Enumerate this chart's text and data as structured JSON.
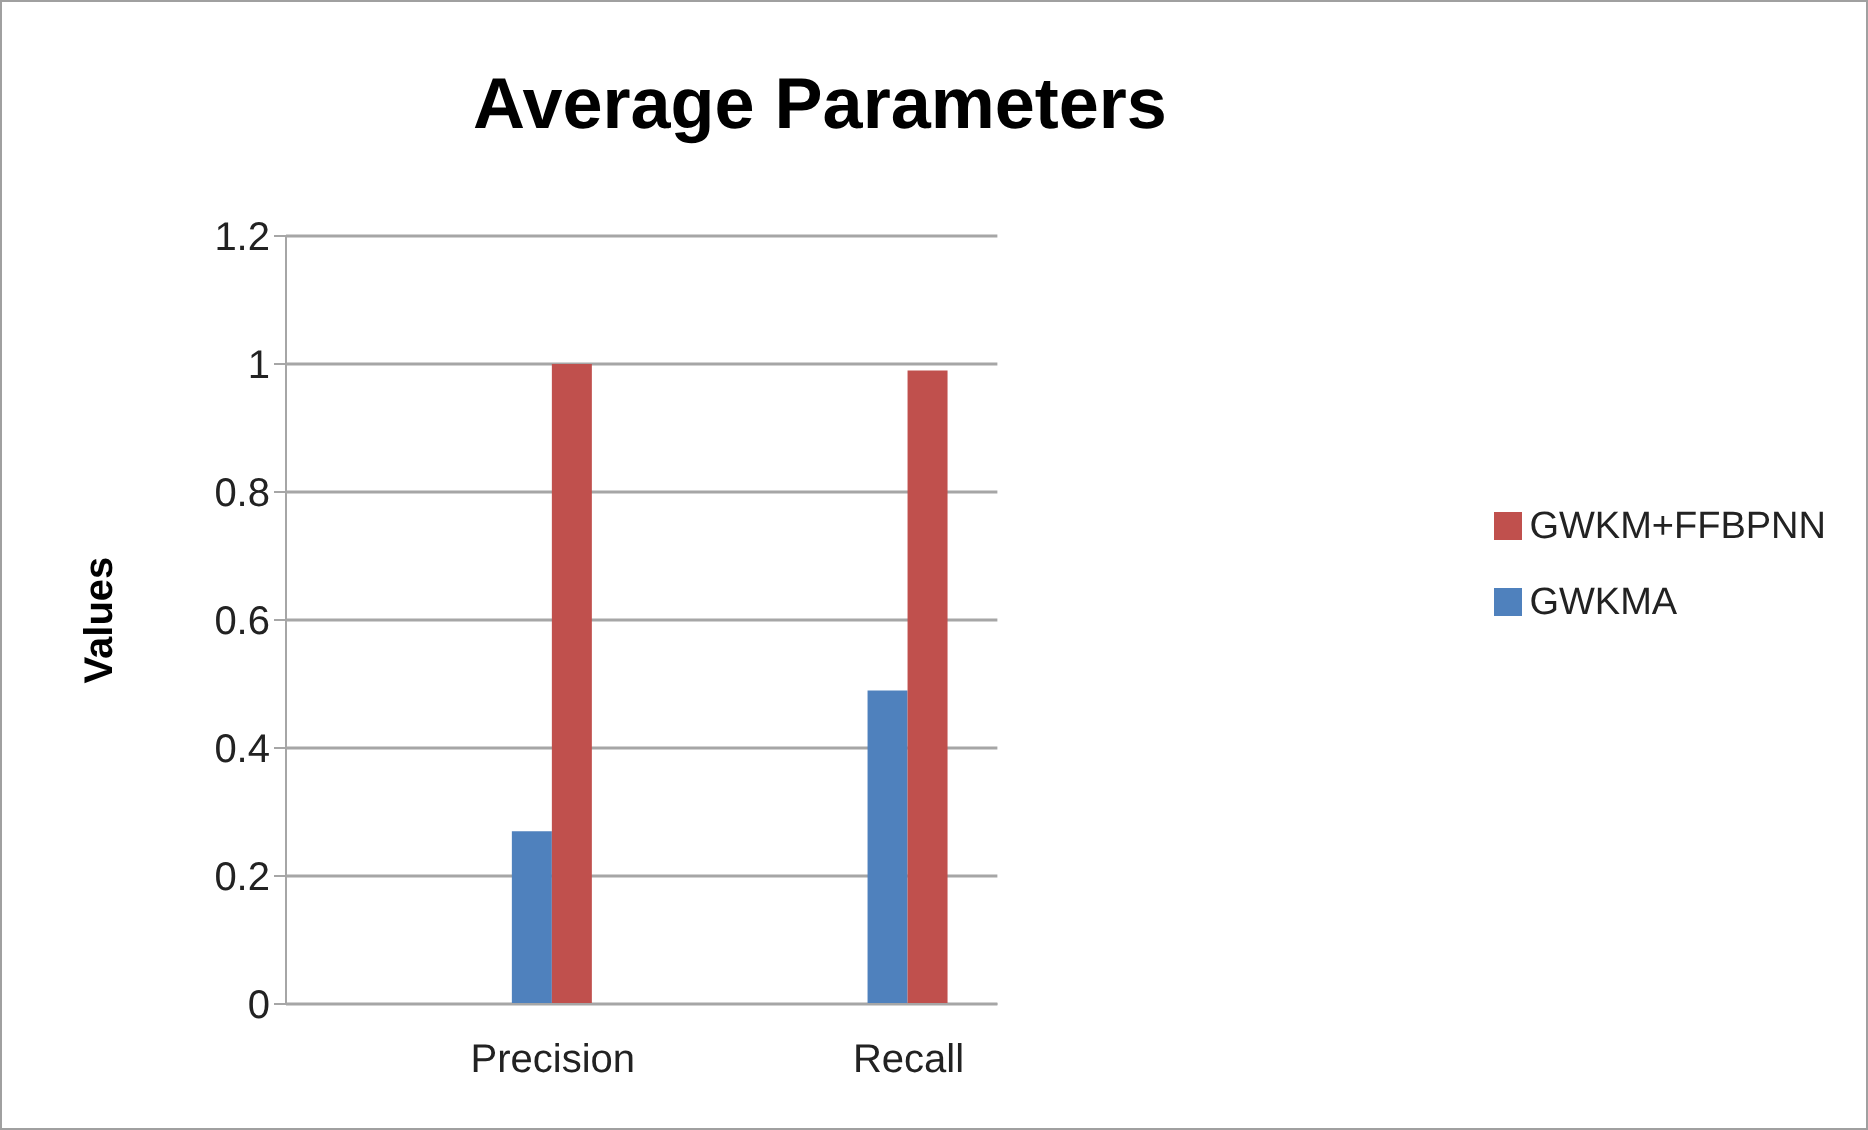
{
  "chart_data": {
    "type": "bar",
    "title": "Average Parameters",
    "ylabel": "Values",
    "categories": [
      null,
      "Precision",
      null,
      "Recall"
    ],
    "series": [
      {
        "name": "GWKMA",
        "color": "#4f81bd",
        "values": [
          null,
          0.27,
          null,
          0.49
        ]
      },
      {
        "name": "GWKM+FFBPNN",
        "color": "#c0504d",
        "values": [
          null,
          1.0,
          null,
          0.99
        ]
      }
    ],
    "ylim": [
      0,
      1.2
    ],
    "yticks": [
      0,
      0.2,
      0.4,
      0.6,
      0.8,
      1,
      1.2
    ],
    "grid": "y",
    "legend": "right"
  }
}
